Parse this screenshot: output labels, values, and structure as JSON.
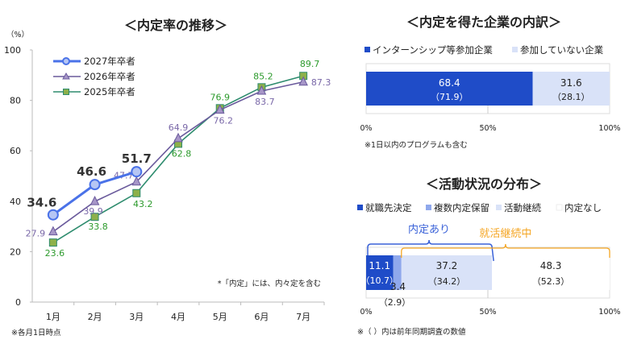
{
  "chart_data": [
    {
      "type": "line",
      "title": "＜内定率の推移＞",
      "ylabel": "（%）",
      "categories": [
        "1月",
        "2月",
        "3月",
        "4月",
        "5月",
        "6月",
        "7月"
      ],
      "ylim": [
        0,
        100
      ],
      "yticks": [
        "0",
        "20",
        "40",
        "60",
        "80",
        "100"
      ],
      "legend": "top-left",
      "grid": false,
      "series": [
        {
          "name": "2027年卒者",
          "values": [
            34.6,
            46.6,
            51.7,
            null,
            null,
            null,
            null
          ],
          "color": "#4a72e8",
          "marker": "circle"
        },
        {
          "name": "2026年卒者",
          "values": [
            27.9,
            39.9,
            47.7,
            64.9,
            76.2,
            83.7,
            87.3
          ],
          "color": "#6a5a9c",
          "marker": "triangle"
        },
        {
          "name": "2025年卒者",
          "values": [
            23.6,
            33.8,
            43.2,
            62.8,
            76.9,
            85.2,
            89.7
          ],
          "color": "#2e8c6e",
          "marker": "square"
        }
      ],
      "notes": [
        "*「内定」には、内々定を含む",
        "※各月1日時点"
      ]
    },
    {
      "type": "bar",
      "orientation": "horizontal-stacked",
      "title": "＜内定を得た企業の内訳＞",
      "xticks": [
        "0%",
        "50%",
        "100%"
      ],
      "series": [
        {
          "name": "インターンシップ等参加企業",
          "value": 68.4,
          "previous": 71.9,
          "color": "#1f4cc8"
        },
        {
          "name": "参加していない企業",
          "value": 31.6,
          "previous": 28.1,
          "color": "#d9e2f8"
        }
      ],
      "note": "※1日以内のプログラムも含む"
    },
    {
      "type": "bar",
      "orientation": "horizontal-stacked",
      "title": "＜活動状況の分布＞",
      "xticks": [
        "0%",
        "50%",
        "100%"
      ],
      "series": [
        {
          "name": "就職先決定",
          "value": 11.1,
          "previous": 10.7,
          "color": "#1f4cc8"
        },
        {
          "name": "複数内定保留",
          "value": 3.4,
          "previous": 2.9,
          "color": "#8fa8ec"
        },
        {
          "name": "活動継続",
          "value": 37.2,
          "previous": 34.2,
          "color": "#d9e2f8"
        },
        {
          "name": "内定なし",
          "value": 48.3,
          "previous": 52.3,
          "color": "#ffffff"
        }
      ],
      "annotations": [
        {
          "label": "内定あり",
          "color": "#3a62d8"
        },
        {
          "label": "就活継続中",
          "color": "#f5a623"
        }
      ],
      "note": "※（ ）内は前年同期調査の数値"
    }
  ]
}
